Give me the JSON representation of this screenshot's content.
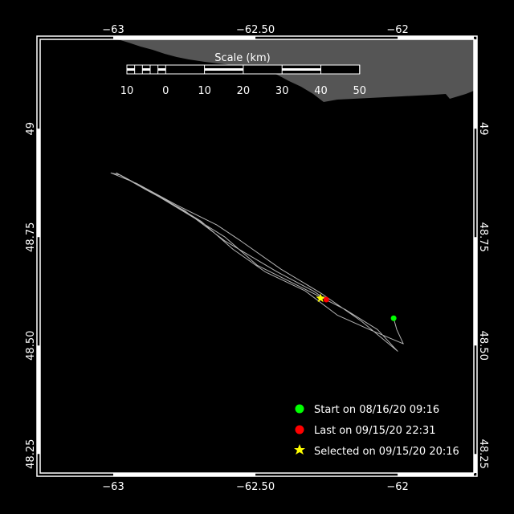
{
  "chart_data": {
    "type": "map-track",
    "colors": {
      "background": "#000000",
      "land": "#555555",
      "track": "#b4b4b4",
      "frame": "#ffffff",
      "start": "#00ff00",
      "last": "#ff0000",
      "selected": "#ffff00"
    },
    "lon_range": [
      -63.257,
      -61.732
    ],
    "lat_range": [
      48.206,
      49.206
    ],
    "lon_ticks": [
      {
        "value": -63,
        "label": "-63"
      },
      {
        "value": -62.5,
        "label": "-62.50"
      },
      {
        "value": -62,
        "label": "-62"
      }
    ],
    "lat_ticks": [
      {
        "value": 49,
        "label": "49"
      },
      {
        "value": 48.75,
        "label": "48.75"
      },
      {
        "value": 48.5,
        "label": "48.50"
      },
      {
        "value": 48.25,
        "label": "48.25"
      }
    ],
    "scale_bar": {
      "title": "Scale (km)",
      "labels": [
        "10",
        "0",
        "10",
        "20",
        "30",
        "40",
        "50"
      ]
    },
    "track": [
      [
        -62.014,
        48.563
      ],
      [
        -62.003,
        48.537
      ],
      [
        -61.98,
        48.504
      ],
      [
        -62.099,
        48.537
      ],
      [
        -62.212,
        48.57
      ],
      [
        -62.325,
        48.626
      ],
      [
        -62.466,
        48.67
      ],
      [
        -62.579,
        48.722
      ],
      [
        -62.692,
        48.787
      ],
      [
        -62.833,
        48.843
      ],
      [
        -62.975,
        48.893
      ],
      [
        -63.008,
        48.898
      ],
      [
        -62.918,
        48.874
      ],
      [
        -62.777,
        48.824
      ],
      [
        -62.636,
        48.778
      ],
      [
        -62.551,
        48.741
      ],
      [
        -62.41,
        48.676
      ],
      [
        -62.268,
        48.62
      ],
      [
        -62.127,
        48.556
      ],
      [
        -62.0,
        48.487
      ],
      [
        -62.071,
        48.537
      ],
      [
        -62.184,
        48.583
      ],
      [
        -62.353,
        48.639
      ],
      [
        -62.494,
        48.685
      ],
      [
        -62.607,
        48.75
      ],
      [
        -62.72,
        48.796
      ],
      [
        -62.862,
        48.852
      ],
      [
        -62.989,
        48.898
      ],
      [
        -62.89,
        48.861
      ],
      [
        -62.749,
        48.811
      ],
      [
        -62.607,
        48.741
      ],
      [
        -62.424,
        48.67
      ],
      [
        -62.297,
        48.626
      ],
      [
        -62.251,
        48.606
      ]
    ],
    "markers": {
      "start": {
        "lon": -62.014,
        "lat": 48.563
      },
      "last": {
        "lon": -62.251,
        "lat": 48.606
      },
      "selected": {
        "lon": -62.271,
        "lat": 48.609
      }
    },
    "legend": {
      "start": "Start on 08/16/20 09:16",
      "last": "Last on 09/15/20 22:31",
      "selected": "Selected on 09/15/20 20:16"
    }
  }
}
